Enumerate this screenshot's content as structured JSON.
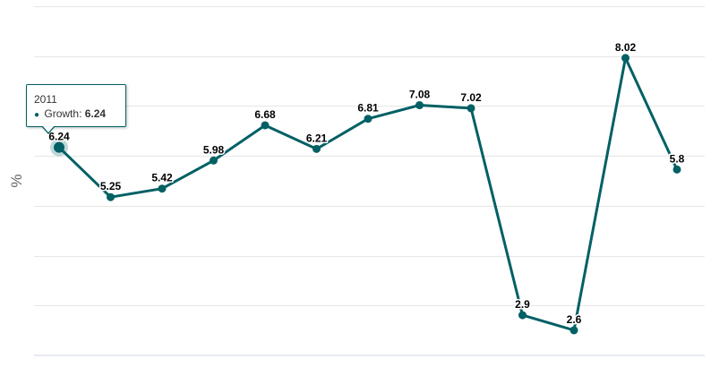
{
  "chart_data": {
    "type": "line",
    "ylabel": "%",
    "ylim": [
      2.1,
      9.05
    ],
    "grid": true,
    "series": [
      {
        "name": "Growth",
        "color": "#006064",
        "values": [
          6.24,
          5.25,
          5.42,
          5.98,
          6.68,
          6.21,
          6.81,
          7.08,
          7.02,
          2.9,
          2.6,
          8.02,
          5.8
        ],
        "labels": [
          "6.24",
          "5.25",
          "5.42",
          "5.98",
          "6.68",
          "6.21",
          "6.81",
          "7.08",
          "7.02",
          "2.9",
          "2.6",
          "8.02",
          "5.8"
        ]
      }
    ],
    "tooltip": {
      "year": "2011",
      "series_label": "Growth:",
      "value": "6.24",
      "index": 0
    }
  }
}
